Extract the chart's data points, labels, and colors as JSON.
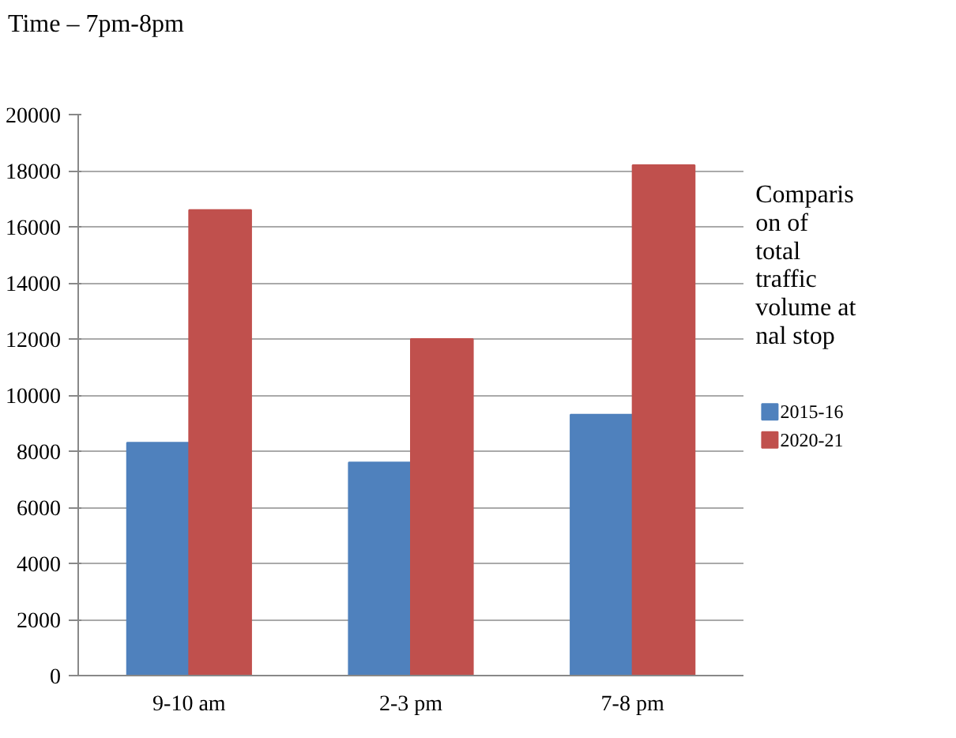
{
  "chart_data": {
    "type": "bar",
    "title": "Comparis\non of\ntotal\ntraffic\nvolume at\nnal stop",
    "annotations": [
      "Time – 7pm-8pm"
    ],
    "categories": [
      "9-10 am",
      "2-3 pm",
      "7-8 pm"
    ],
    "series": [
      {
        "name": "2015-16",
        "color": "#4f81bd",
        "values": [
          8300,
          7600,
          9300
        ]
      },
      {
        "name": "2020-21",
        "color": "#c0504d",
        "values": [
          16600,
          12000,
          18200
        ]
      }
    ],
    "ylim": [
      0,
      20000
    ],
    "yticks": [
      0,
      2000,
      4000,
      6000,
      8000,
      10000,
      12000,
      14000,
      16000,
      18000,
      20000
    ],
    "grid": "y",
    "legend": "right"
  }
}
